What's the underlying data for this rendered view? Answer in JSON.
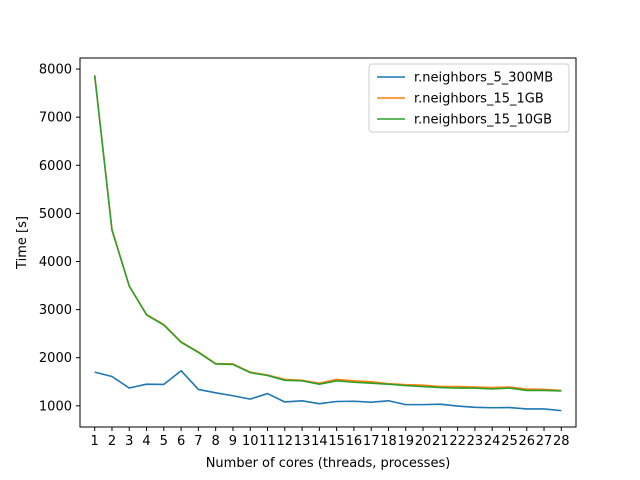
{
  "chart_data": {
    "type": "line",
    "title": "",
    "xlabel": "Number of cores (threads, processes)",
    "ylabel": "Time [s]",
    "x": [
      1,
      2,
      3,
      4,
      5,
      6,
      7,
      8,
      9,
      10,
      11,
      12,
      13,
      14,
      15,
      16,
      17,
      18,
      19,
      20,
      21,
      22,
      23,
      24,
      25,
      26,
      27,
      28
    ],
    "xlim": [
      0.15,
      28.85
    ],
    "ylim": [
      560,
      8230
    ],
    "yticks": [
      1000,
      2000,
      3000,
      4000,
      5000,
      6000,
      7000,
      8000
    ],
    "grid": false,
    "legend_position": "top-right",
    "series": [
      {
        "name": "r.neighbors_5_300MB",
        "color": "#1f77b4",
        "values": [
          1700,
          1610,
          1370,
          1450,
          1445,
          1730,
          1340,
          1270,
          1210,
          1140,
          1255,
          1080,
          1105,
          1045,
          1090,
          1095,
          1075,
          1105,
          1025,
          1025,
          1035,
          995,
          970,
          960,
          965,
          935,
          935,
          900
        ]
      },
      {
        "name": "r.neighbors_15_1GB",
        "color": "#ff7f0e",
        "values": [
          7870,
          4670,
          3490,
          2900,
          2690,
          2330,
          2120,
          1880,
          1870,
          1700,
          1640,
          1550,
          1530,
          1470,
          1550,
          1520,
          1500,
          1460,
          1440,
          1430,
          1400,
          1400,
          1390,
          1380,
          1390,
          1350,
          1340,
          1320
        ]
      },
      {
        "name": "r.neighbors_15_10GB",
        "color": "#2ca02c",
        "values": [
          7870,
          4650,
          3490,
          2890,
          2680,
          2320,
          2110,
          1870,
          1860,
          1690,
          1630,
          1530,
          1520,
          1450,
          1520,
          1490,
          1470,
          1450,
          1420,
          1400,
          1380,
          1370,
          1370,
          1350,
          1370,
          1320,
          1320,
          1310
        ]
      }
    ]
  }
}
